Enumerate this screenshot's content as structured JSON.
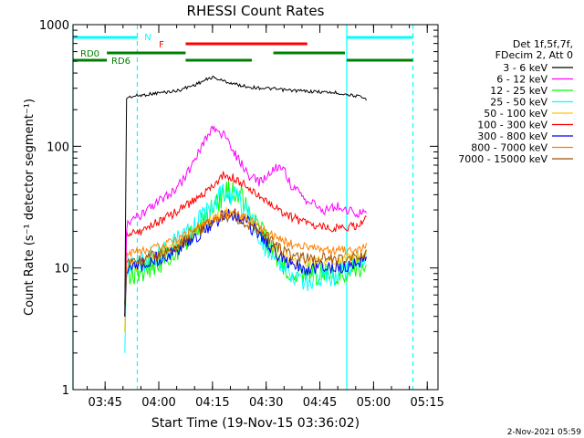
{
  "chart_data": {
    "type": "line",
    "title": "RHESSI Count Rates",
    "xlabel": "Start Time (19-Nov-15 03:36:02)",
    "ylabel": "Count Rate (s⁻¹ detector segment⁻¹)",
    "y_scale": "log",
    "ylim": [
      1,
      1000
    ],
    "xlim": [
      "03:36:02",
      "05:18:00"
    ],
    "y_ticks": [
      "1",
      "10",
      "100",
      "1000"
    ],
    "x_ticks": [
      "03:45",
      "04:00",
      "04:15",
      "04:30",
      "04:45",
      "05:00",
      "05:15"
    ],
    "grid": false,
    "legend_position": "right",
    "legend_header": [
      "Det 1f,5f,7f,",
      "FDecim 2, Att 0"
    ],
    "series": [
      {
        "name": "3 - 6 keV",
        "color": "#000000",
        "x": [
          "03:50:30",
          "03:51:00",
          "03:52",
          "03:56",
          "04:00",
          "04:05",
          "04:10",
          "04:13",
          "04:15",
          "04:18",
          "04:22",
          "04:26",
          "04:30",
          "04:35",
          "04:40",
          "04:45",
          "04:50",
          "04:55",
          "04:58"
        ],
        "values": [
          4,
          250,
          255,
          265,
          275,
          285,
          320,
          350,
          370,
          345,
          320,
          305,
          300,
          290,
          285,
          280,
          275,
          260,
          245
        ]
      },
      {
        "name": "6 - 12 keV",
        "color": "#ff00ff",
        "x": [
          "03:50:30",
          "03:51:00",
          "03:52",
          "03:56",
          "04:00",
          "04:05",
          "04:08",
          "04:11",
          "04:14",
          "04:16",
          "04:19",
          "04:22",
          "04:25",
          "04:28",
          "04:31",
          "04:33",
          "04:35",
          "04:37",
          "04:40",
          "04:43",
          "04:46",
          "04:50",
          "04:55",
          "04:58"
        ],
        "values": [
          4,
          22,
          24,
          28,
          35,
          45,
          60,
          90,
          130,
          140,
          115,
          80,
          58,
          50,
          60,
          68,
          65,
          48,
          38,
          34,
          30,
          32,
          28,
          30
        ]
      },
      {
        "name": "12 - 25 keV",
        "color": "#00ff00",
        "x": [
          "03:50:30",
          "03:51:00",
          "03:55",
          "04:00",
          "04:05",
          "04:10",
          "04:15",
          "04:18",
          "04:21",
          "04:24",
          "04:27",
          "04:30",
          "04:33",
          "04:36",
          "04:40",
          "04:45",
          "04:50",
          "04:55",
          "04:58"
        ],
        "values": [
          3,
          9,
          9,
          11,
          14,
          20,
          30,
          40,
          43,
          35,
          25,
          17,
          12,
          10,
          9,
          9,
          9,
          10,
          11
        ]
      },
      {
        "name": "25 - 50 keV",
        "color": "#00ffff",
        "x": [
          "03:50:30",
          "03:51:00",
          "03:55",
          "04:00",
          "04:05",
          "04:10",
          "04:15",
          "04:18",
          "04:21",
          "04:24",
          "04:27",
          "04:30",
          "04:33",
          "04:36",
          "04:40",
          "04:45",
          "04:50",
          "04:55",
          "04:58"
        ],
        "values": [
          2,
          11,
          11,
          13,
          16,
          22,
          32,
          40,
          40,
          32,
          22,
          15,
          11,
          9,
          8,
          8,
          9,
          11,
          12
        ]
      },
      {
        "name": "50 - 100 keV",
        "color": "#ffc800",
        "x": [
          "03:50:30",
          "03:51:00",
          "03:55",
          "04:00",
          "04:05",
          "04:10",
          "04:15",
          "04:18",
          "04:21",
          "04:24",
          "04:27",
          "04:30",
          "04:33",
          "04:36",
          "04:40",
          "04:45",
          "04:50",
          "04:55",
          "04:58"
        ],
        "values": [
          3,
          10,
          11,
          13,
          15,
          19,
          25,
          28,
          28,
          25,
          21,
          17,
          14,
          12,
          11,
          11,
          11,
          12,
          13
        ]
      },
      {
        "name": "100 - 300 keV",
        "color": "#ff0000",
        "x": [
          "03:50:30",
          "03:51:00",
          "03:55",
          "04:00",
          "04:05",
          "04:10",
          "04:15",
          "04:18",
          "04:21",
          "04:24",
          "04:27",
          "04:30",
          "04:33",
          "04:36",
          "04:40",
          "04:45",
          "04:50",
          "04:55",
          "04:58"
        ],
        "values": [
          5,
          19,
          20,
          24,
          29,
          36,
          47,
          58,
          55,
          48,
          41,
          36,
          31,
          27,
          24,
          22,
          21,
          22,
          25
        ]
      },
      {
        "name": "300 - 800 keV",
        "color": "#0000ff",
        "x": [
          "03:50:30",
          "03:51:00",
          "03:55",
          "04:00",
          "04:05",
          "04:10",
          "04:15",
          "04:18",
          "04:21",
          "04:24",
          "04:27",
          "04:30",
          "04:33",
          "04:36",
          "04:40",
          "04:45",
          "04:50",
          "04:55",
          "04:58"
        ],
        "values": [
          4,
          10,
          10.5,
          12,
          14,
          18,
          23,
          27,
          28,
          25,
          20,
          16,
          13,
          11,
          10,
          10,
          10,
          11,
          12
        ]
      },
      {
        "name": "800 - 7000 keV",
        "color": "#ff8000",
        "x": [
          "03:50:30",
          "03:51:00",
          "03:55",
          "04:00",
          "04:05",
          "04:10",
          "04:15",
          "04:18",
          "04:21",
          "04:24",
          "04:27",
          "04:30",
          "04:33",
          "04:36",
          "04:40",
          "04:45",
          "04:50",
          "04:55",
          "04:58"
        ],
        "values": [
          5,
          13,
          13.5,
          15,
          17,
          21,
          25,
          28,
          28,
          26,
          23,
          20,
          18,
          16,
          15,
          14,
          14,
          14,
          15
        ]
      },
      {
        "name": "7000 - 15000 keV",
        "color": "#a05000",
        "x": [
          "03:50:30",
          "03:51:00",
          "03:55",
          "04:00",
          "04:05",
          "04:10",
          "04:15",
          "04:18",
          "04:21",
          "04:24",
          "04:27",
          "04:30",
          "04:33",
          "04:36",
          "04:40",
          "04:45",
          "04:50",
          "04:55",
          "04:58"
        ],
        "values": [
          4,
          11,
          11.5,
          13,
          15,
          19,
          24,
          27,
          27,
          24,
          21,
          18,
          15,
          13,
          12,
          12,
          12,
          12,
          13
        ]
      }
    ],
    "state_bars": [
      {
        "label": "N",
        "color": "#00ffff",
        "segments": [
          [
            "03:36:02",
            "03:54:00"
          ],
          [
            "04:52:30",
            "05:11:00"
          ]
        ]
      },
      {
        "label": "F",
        "color": "#ff0000",
        "segments": [
          [
            "04:07:30",
            "04:41:30"
          ]
        ]
      },
      {
        "label": "RD0",
        "color": "#008000",
        "segments": [
          [
            "03:45:30",
            "04:07:30"
          ],
          [
            "04:32:00",
            "04:52:00"
          ]
        ]
      },
      {
        "label": "RD6",
        "color": "#008000",
        "segments": [
          [
            "03:36:02",
            "03:45:30"
          ],
          [
            "04:07:30",
            "04:26:00"
          ],
          [
            "04:52:30",
            "05:11:00"
          ]
        ]
      }
    ],
    "vertical_lines": [
      {
        "x": "03:36:02",
        "color": "#00ffff",
        "style": "solid"
      },
      {
        "x": "03:54:00",
        "color": "#00ffff",
        "style": "dashed"
      },
      {
        "x": "04:52:30",
        "color": "#00ffff",
        "style": "solid"
      },
      {
        "x": "05:11:00",
        "color": "#00ffff",
        "style": "dashed"
      }
    ]
  },
  "footer": {
    "timestamp": "2-Nov-2021 05:59"
  }
}
